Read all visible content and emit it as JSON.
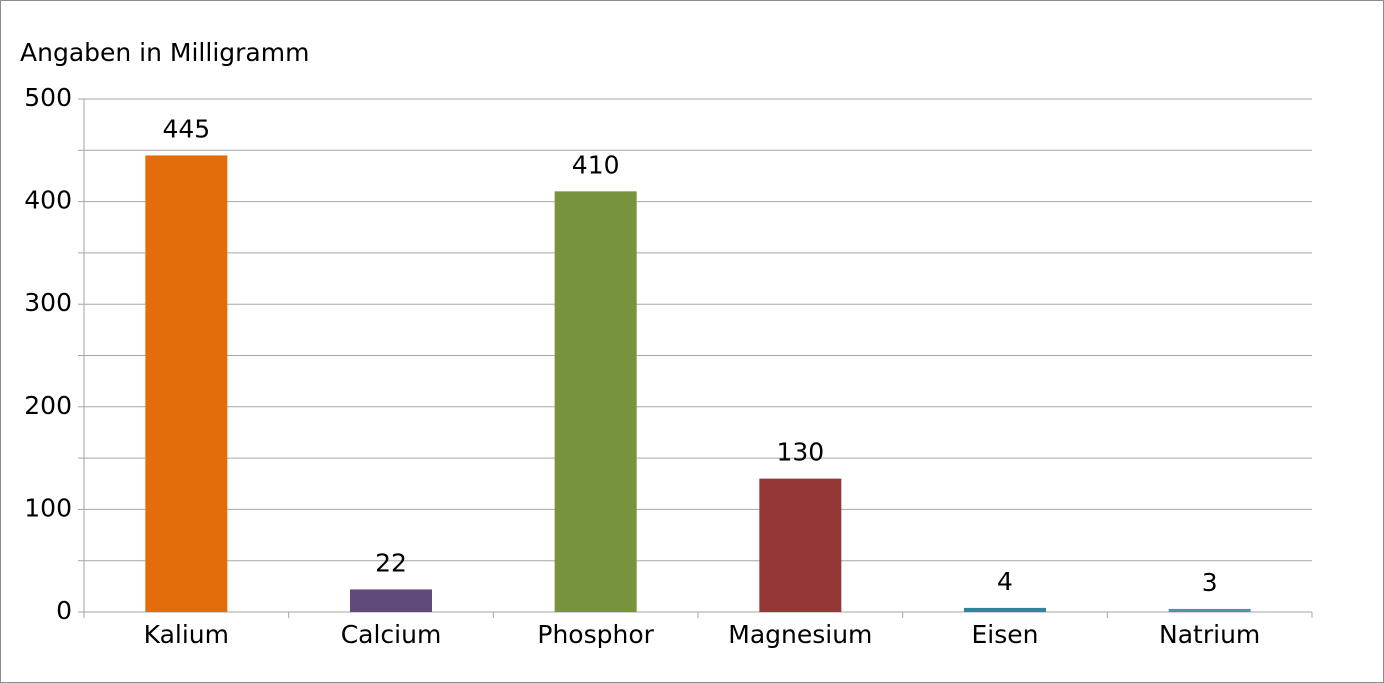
{
  "chart_data": {
    "type": "bar",
    "title": "Angaben in Milligramm",
    "categories": [
      "Kalium",
      "Calcium",
      "Phosphor",
      "Magnesium",
      "Eisen",
      "Natrium"
    ],
    "values": [
      445,
      22,
      410,
      130,
      4,
      3
    ],
    "colors": [
      "#e46c0a",
      "#604a7b",
      "#77933c",
      "#953735",
      "#31849b",
      "#4f93a8"
    ],
    "ylim": [
      0,
      500
    ],
    "yticks": [
      0,
      100,
      200,
      300,
      400,
      500
    ],
    "minor_yticks": [
      50,
      150,
      250,
      350,
      450
    ],
    "grid": true
  }
}
